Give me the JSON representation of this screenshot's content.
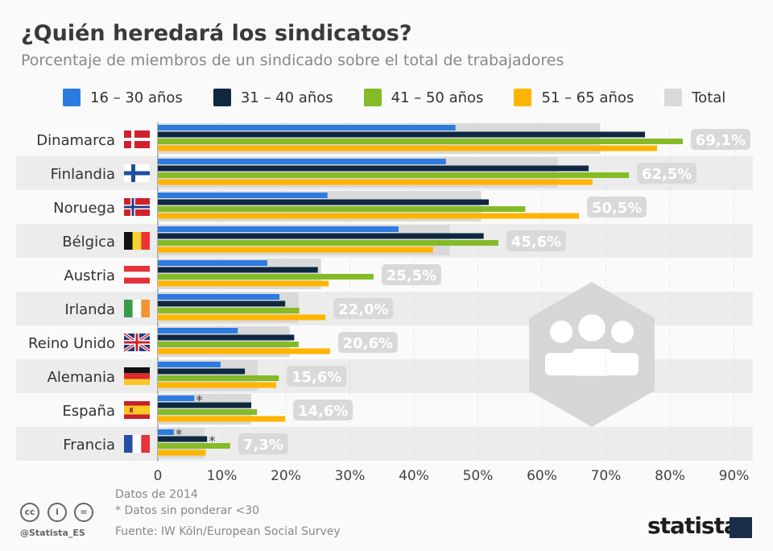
{
  "title": "¿Quién heredará los sindicatos?",
  "subtitle": "Porcentaje de miembros de un sindicado sobre el total de trabajadores",
  "footer": {
    "note1": "Datos de 2014",
    "note2": "* Datos sin ponderar <30",
    "source": "Fuente: IW Köln/European Social Survey",
    "handle": "@Statista_ES",
    "brand": "statista",
    "cc_icons": [
      "cc-icon",
      "by-icon",
      "nd-icon"
    ]
  },
  "chart_data": {
    "type": "bar",
    "orientation": "horizontal",
    "title": "¿Quién heredará los sindicatos?",
    "xlim": [
      0,
      90
    ],
    "xticks": [
      "0",
      "10%",
      "20%",
      "30%",
      "40%",
      "50%",
      "60%",
      "70%",
      "80%",
      "90%"
    ],
    "xtick_values": [
      0,
      10,
      20,
      30,
      40,
      50,
      60,
      70,
      80,
      90
    ],
    "grid": true,
    "legend_position": "top",
    "categories": [
      "Dinamarca",
      "Finlandia",
      "Noruega",
      "Bélgica",
      "Austria",
      "Irlanda",
      "Reino Unido",
      "Alemania",
      "España",
      "Francia"
    ],
    "series": [
      {
        "name": "16 – 30 años",
        "color": "#2d7be0",
        "values": [
          46.5,
          45.0,
          26.5,
          37.6,
          17.1,
          19.0,
          12.5,
          9.8,
          5.7,
          2.5
        ],
        "asterisk": [
          false,
          false,
          false,
          false,
          false,
          false,
          false,
          false,
          true,
          true
        ]
      },
      {
        "name": "31 – 40 años",
        "color": "#0f2841",
        "values": [
          76.1,
          67.3,
          51.7,
          50.9,
          25.0,
          19.9,
          21.3,
          13.6,
          14.6,
          7.7
        ],
        "asterisk": [
          false,
          false,
          false,
          false,
          false,
          false,
          false,
          false,
          false,
          true
        ]
      },
      {
        "name": "41 – 50 años",
        "color": "#84bb26",
        "values": [
          82.0,
          73.6,
          57.4,
          53.2,
          33.7,
          22.1,
          22.0,
          18.9,
          15.5,
          11.3
        ]
      },
      {
        "name": "51 – 65 años",
        "color": "#ffb400",
        "values": [
          78.0,
          67.9,
          65.8,
          43.0,
          26.7,
          26.2,
          26.9,
          18.5,
          19.9,
          7.5
        ]
      },
      {
        "name": "Total",
        "color": "#d9d9d9",
        "values": [
          69.1,
          62.5,
          50.5,
          45.6,
          25.5,
          22.0,
          20.6,
          15.6,
          14.6,
          7.3
        ],
        "labels": [
          "69,1%",
          "62,5%",
          "50,5%",
          "45,6%",
          "25,5%",
          "22,0%",
          "20,6%",
          "15,6%",
          "14,6%",
          "7,3%"
        ]
      }
    ]
  }
}
